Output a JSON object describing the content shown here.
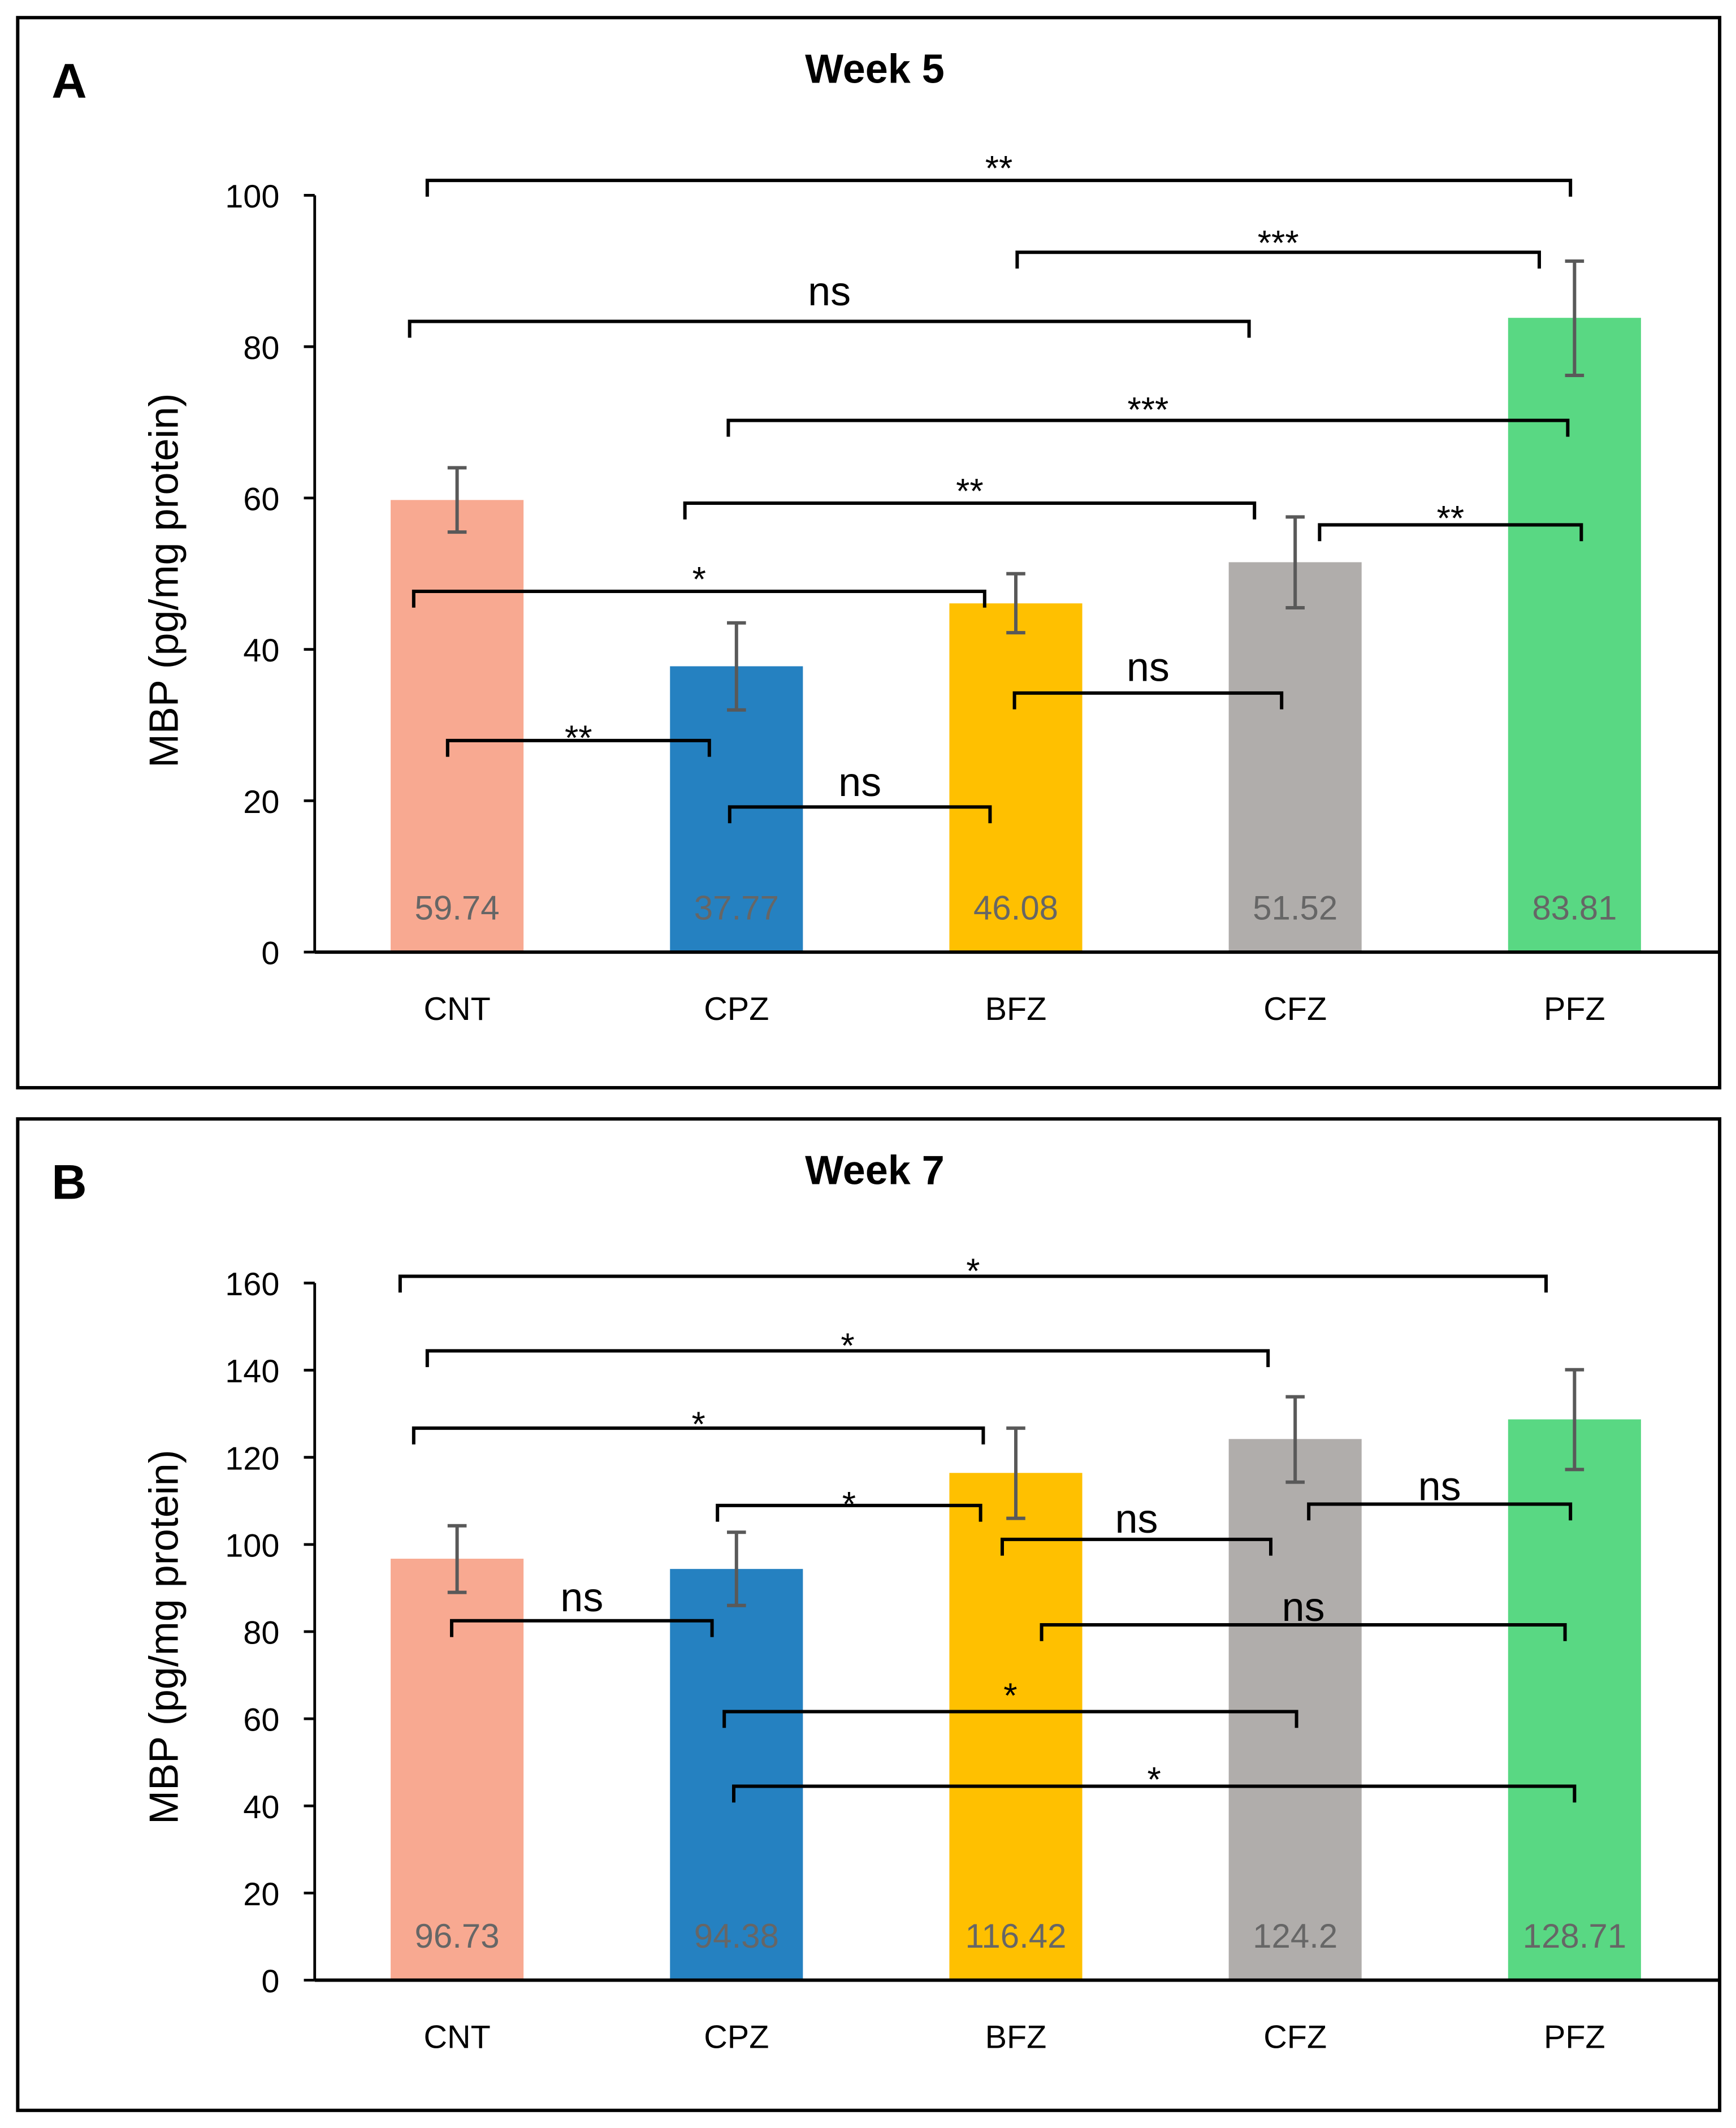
{
  "chart_data": [
    {
      "panel_label": "A",
      "type": "bar",
      "title": "Week 5",
      "xlabel": "",
      "ylabel": "MBP (pg/mg protein)",
      "ylim": [
        0,
        100
      ],
      "yticks": [
        0,
        20,
        40,
        60,
        80,
        100
      ],
      "categories": [
        "CNT",
        "CPZ",
        "BFZ",
        "CFZ",
        "PFZ"
      ],
      "values": [
        59.74,
        37.77,
        46.08,
        51.52,
        83.81
      ],
      "value_labels": [
        "59.74",
        "37.77",
        "46.08",
        "51.52",
        "83.81"
      ],
      "error_low": [
        55.5,
        32.0,
        42.2,
        45.5,
        76.2
      ],
      "error_high": [
        64.0,
        43.5,
        50.0,
        57.5,
        91.3
      ],
      "colors": [
        "#F8A991",
        "#2581C1",
        "#FFC000",
        "#B0ADAB",
        "#59D883"
      ],
      "grid": false,
      "comparisons": [
        {
          "groups": [
            "CNT",
            "PFZ"
          ],
          "label": "**"
        },
        {
          "groups": [
            "BFZ",
            "PFZ"
          ],
          "label": "***"
        },
        {
          "groups": [
            "CNT",
            "CFZ"
          ],
          "label": "ns"
        },
        {
          "groups": [
            "CPZ",
            "PFZ"
          ],
          "label": "***"
        },
        {
          "groups": [
            "CPZ",
            "CFZ"
          ],
          "label": "**"
        },
        {
          "groups": [
            "CFZ",
            "PFZ"
          ],
          "label": "**"
        },
        {
          "groups": [
            "CNT",
            "BFZ"
          ],
          "label": "*"
        },
        {
          "groups": [
            "BFZ",
            "CFZ"
          ],
          "label": "ns"
        },
        {
          "groups": [
            "CNT",
            "CPZ"
          ],
          "label": "**"
        },
        {
          "groups": [
            "CPZ",
            "BFZ"
          ],
          "label": "ns"
        }
      ]
    },
    {
      "panel_label": "B",
      "type": "bar",
      "title": "Week 7",
      "xlabel": "",
      "ylabel": "MBP (pg/mg protein)",
      "ylim": [
        0,
        160
      ],
      "yticks": [
        0,
        20,
        40,
        60,
        80,
        100,
        120,
        140,
        160
      ],
      "categories": [
        "CNT",
        "CPZ",
        "BFZ",
        "CFZ",
        "PFZ"
      ],
      "values": [
        96.73,
        94.38,
        116.42,
        124.2,
        128.71
      ],
      "value_labels": [
        "96.73",
        "94.38",
        "116.42",
        "124.2",
        "128.71"
      ],
      "error_low": [
        89.0,
        86.0,
        106.0,
        114.3,
        117.2
      ],
      "error_high": [
        104.3,
        102.8,
        126.7,
        133.9,
        140.1
      ],
      "colors": [
        "#F8A991",
        "#2581C1",
        "#FFC000",
        "#B0ADAB",
        "#59D883"
      ],
      "grid": false,
      "comparisons": [
        {
          "groups": [
            "CNT",
            "PFZ"
          ],
          "label": "*"
        },
        {
          "groups": [
            "CNT",
            "CFZ"
          ],
          "label": "*"
        },
        {
          "groups": [
            "CNT",
            "BFZ"
          ],
          "label": "*"
        },
        {
          "groups": [
            "CPZ",
            "BFZ"
          ],
          "label": "*"
        },
        {
          "groups": [
            "BFZ",
            "CFZ"
          ],
          "label": "ns"
        },
        {
          "groups": [
            "CFZ",
            "PFZ"
          ],
          "label": "ns"
        },
        {
          "groups": [
            "CNT",
            "CPZ"
          ],
          "label": "ns"
        },
        {
          "groups": [
            "BFZ",
            "PFZ"
          ],
          "label": "ns"
        },
        {
          "groups": [
            "CPZ",
            "CFZ"
          ],
          "label": "*"
        },
        {
          "groups": [
            "CPZ",
            "PFZ"
          ],
          "label": "*"
        }
      ]
    }
  ]
}
